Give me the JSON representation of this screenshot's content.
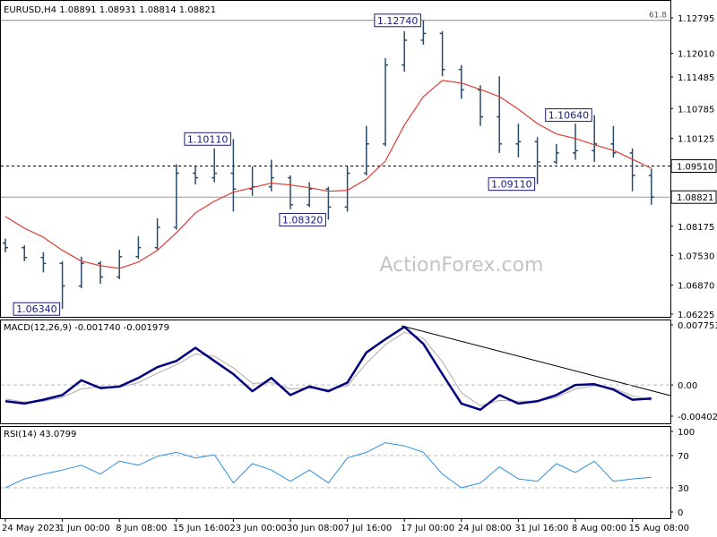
{
  "chart_data": [
    {
      "type": "ohlc",
      "title": "EURUSD,H4  1.08891 1.08931 1.08814 1.08821",
      "watermark": "ActionForex.com",
      "color": "#2b4a66",
      "categories": [
        "24 May 2023",
        null,
        null,
        "1 Jun 00:00",
        null,
        null,
        "8 Jun 08:00",
        null,
        null,
        "15 Jun 16:00",
        null,
        null,
        "23 Jun 00:00",
        null,
        null,
        "30 Jun 08:00",
        null,
        null,
        "7 Jul 16:00",
        null,
        null,
        "17 Jul 00:00",
        null,
        null,
        "24 Jul 08:00",
        null,
        null,
        "31 Jul 16:00",
        null,
        null,
        "8 Aug 00:00",
        null,
        null,
        "15 Aug 08:00",
        null
      ],
      "open": [
        1.078,
        1.077,
        1.0748,
        1.0735,
        1.0685,
        1.0735,
        1.0705,
        1.075,
        1.077,
        1.0815,
        1.0935,
        1.0925,
        1.0935,
        1.09,
        1.0905,
        1.0925,
        1.0865,
        1.09,
        1.086,
        1.0935,
        1.1,
        1.1175,
        1.123,
        1.1245,
        1.1165,
        1.112,
        1.106,
        1.1,
        1.1005,
        1.096,
        1.098,
        1.0985,
        1.1,
        1.098,
        1.093
      ],
      "high": [
        1.079,
        1.0775,
        1.076,
        1.074,
        1.075,
        1.074,
        1.0765,
        1.0795,
        1.0835,
        1.0955,
        1.095,
        1.099,
        1.1011,
        1.095,
        1.0965,
        1.093,
        1.0915,
        1.0905,
        1.095,
        1.104,
        1.119,
        1.125,
        1.1274,
        1.125,
        1.1175,
        1.113,
        1.115,
        1.1045,
        1.1015,
        1.1,
        1.1045,
        1.1064,
        1.104,
        1.099,
        1.0945
      ],
      "low": [
        1.076,
        1.074,
        1.0715,
        1.0634,
        1.068,
        1.069,
        1.07,
        1.0745,
        1.0765,
        1.081,
        1.091,
        1.0915,
        1.085,
        1.0885,
        1.0895,
        1.0855,
        1.086,
        1.0832,
        1.085,
        1.093,
        1.0995,
        1.116,
        1.122,
        1.115,
        1.11,
        1.104,
        1.098,
        1.097,
        1.0911,
        1.0955,
        1.0965,
        1.096,
        1.097,
        1.0895,
        1.0865
      ],
      "close": [
        1.077,
        1.0748,
        1.0735,
        1.0685,
        1.0735,
        1.0705,
        1.075,
        1.077,
        1.0815,
        1.0935,
        1.0925,
        1.0935,
        1.09,
        1.0905,
        1.0925,
        1.0865,
        1.09,
        1.086,
        1.0935,
        1.1,
        1.1175,
        1.123,
        1.1245,
        1.1165,
        1.112,
        1.106,
        1.1,
        1.1005,
        1.096,
        1.098,
        1.0985,
        1.1,
        1.098,
        1.093,
        1.08821
      ],
      "ma": {
        "color": "#e03a33",
        "values": [
          1.0839,
          1.0813,
          1.0793,
          1.0764,
          1.074,
          1.073,
          1.0724,
          1.0738,
          1.0764,
          1.0803,
          1.0847,
          1.0873,
          1.0893,
          1.0903,
          1.0913,
          1.0909,
          1.0903,
          1.0895,
          1.0897,
          1.0922,
          1.0962,
          1.1042,
          1.1105,
          1.1141,
          1.1135,
          1.1121,
          1.1105,
          1.1077,
          1.1045,
          1.1022,
          1.1012,
          1.0998,
          1.0986,
          1.0966,
          1.0946
        ]
      },
      "ylim": [
        1.06225,
        1.12795
      ],
      "yticks": [
        1.12795,
        {
          "value": 1.1201,
          "label": "1.12010"
        },
        1.11485,
        1.10785,
        1.10125,
        1.08175,
        {
          "value": 1.0753,
          "label": "1.07530"
        },
        {
          "value": 1.0687,
          "label": "1.06870"
        },
        1.06225
      ],
      "hlines": [
        {
          "value": 1.1274,
          "name": "61.8",
          "color": "#888888",
          "dash": false
        },
        {
          "value": 1.0951,
          "label": "1.09510",
          "color": "#000000",
          "dash": true
        },
        {
          "value": 1.08821,
          "label": "1.08821",
          "color": "#999999",
          "dash": false
        }
      ],
      "annotations": [
        {
          "value": 1.1274,
          "label": "1.12740"
        },
        {
          "value": 1.1011,
          "label": "1.10110"
        },
        {
          "value": 1.0832,
          "label": "1.08320"
        },
        {
          "value": 1.0634,
          "label": "1.06340"
        },
        {
          "value": 1.0911,
          "label": "1.09110"
        },
        {
          "value": 1.1064,
          "label": "1.10640"
        }
      ]
    },
    {
      "type": "line",
      "title": "MACD(12,26,9) -0.001740 -0.001979",
      "series": [
        {
          "color": "#b8a8a8",
          "width": 1,
          "values": [
            -0.0018,
            -0.0022,
            -0.0021,
            -0.0016,
            -0.0005,
            -0.0002,
            -0.0003,
            0.0003,
            0.0015,
            0.0026,
            0.004,
            0.0037,
            0.0022,
            0.0002,
            0.0003,
            -0.0005,
            -0.0004,
            -0.0006,
            -0.0001,
            0.0028,
            0.0052,
            0.0068,
            0.006,
            0.003,
            -0.001,
            -0.0027,
            -0.002,
            -0.0021,
            -0.0021,
            -0.0016,
            -0.0005,
            -0.0001,
            -0.0004,
            -0.0014,
            -0.001979
          ]
        },
        {
          "color": "#000080",
          "width": 2.5,
          "values": [
            -0.0021,
            -0.0024,
            -0.0019,
            -0.0013,
            0.0006,
            -0.0004,
            -0.0002,
            0.0009,
            0.0023,
            0.0031,
            0.0048,
            0.0031,
            0.0014,
            -0.0008,
            0.0009,
            -0.0013,
            -0.0002,
            -0.0008,
            0.0003,
            0.0042,
            0.0059,
            0.0075,
            0.0053,
            0.0014,
            -0.0024,
            -0.0032,
            -0.0013,
            -0.0024,
            -0.0021,
            -0.0013,
            0.0,
            0.0001,
            -0.0006,
            -0.0019,
            -0.00174
          ]
        }
      ],
      "ylim": [
        -0.004027,
        0.007753
      ],
      "yticks": [
        0.007753,
        {
          "value": 0,
          "label": "0.00"
        },
        -0.004027
      ],
      "levels": [
        0
      ]
    },
    {
      "type": "line",
      "title": "RSI(14) 43.0799",
      "series": [
        {
          "color": "#2f8fe0",
          "width": 1,
          "values": [
            30,
            41,
            47,
            52,
            58,
            47,
            63,
            58,
            69,
            74,
            67,
            71,
            36,
            60,
            52,
            38,
            52,
            36,
            67,
            74,
            86,
            82,
            74,
            47,
            30,
            36,
            56,
            41,
            38,
            60,
            49,
            63,
            38,
            41,
            43.0799
          ]
        }
      ],
      "ylim": [
        0,
        100
      ],
      "yticks": [
        100,
        70,
        30,
        0
      ],
      "levels": [
        70,
        30
      ]
    }
  ]
}
